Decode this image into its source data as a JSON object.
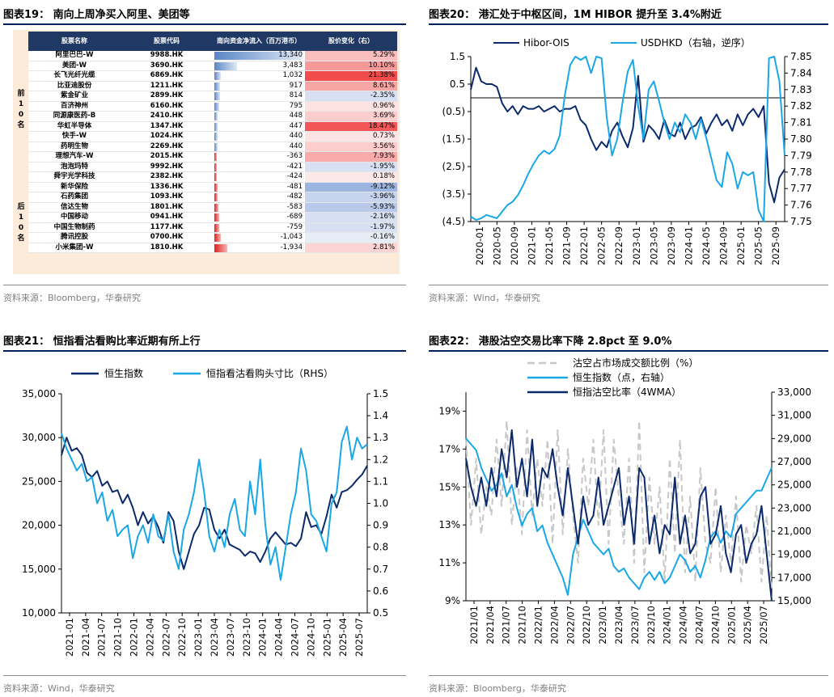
{
  "fig19": {
    "title": "图表19：  南向上周净买入阿里、美团等",
    "source": "资料来源：Bloomberg，华泰研究",
    "headers": [
      "股票名称",
      "股票代码",
      "南向资金净流入（百万港币）",
      "股价变化（右）"
    ],
    "group_top": "前10名",
    "group_bottom": "后10名",
    "colors": {
      "header": "#1f3864",
      "pos_bar": "#5b86c5",
      "neg_bar": "#e02020",
      "red": "#f24b4b",
      "blue": "#4472c4"
    },
    "chart_data": {
      "type": "table",
      "rows": [
        {
          "name": "阿里巴巴-W",
          "code": "9988.HK",
          "flow": 13340,
          "flow_label": "13,340",
          "chg": 5.29,
          "chg_label": "5.29%"
        },
        {
          "name": "美团-W",
          "code": "3690.HK",
          "flow": 3483,
          "flow_label": "3,483",
          "chg": 10.1,
          "chg_label": "10.10%"
        },
        {
          "name": "长飞光纤光缆",
          "code": "6869.HK",
          "flow": 1032,
          "flow_label": "1,032",
          "chg": 21.38,
          "chg_label": "21.38%"
        },
        {
          "name": "比亚迪股份",
          "code": "1211.HK",
          "flow": 917,
          "flow_label": "917",
          "chg": 8.61,
          "chg_label": "8.61%"
        },
        {
          "name": "紫金矿业",
          "code": "2899.HK",
          "flow": 814,
          "flow_label": "814",
          "chg": -2.35,
          "chg_label": "-2.35%"
        },
        {
          "name": "百济神州",
          "code": "6160.HK",
          "flow": 795,
          "flow_label": "795",
          "chg": 0.96,
          "chg_label": "0.96%"
        },
        {
          "name": "同源康医药-B",
          "code": "2410.HK",
          "flow": 448,
          "flow_label": "448",
          "chg": 3.69,
          "chg_label": "3.69%"
        },
        {
          "name": "华虹半导体",
          "code": "1347.HK",
          "flow": 447,
          "flow_label": "447",
          "chg": 18.47,
          "chg_label": "18.47%"
        },
        {
          "name": "快手-W",
          "code": "1024.HK",
          "flow": 440,
          "flow_label": "440",
          "chg": 0.73,
          "chg_label": "0.73%"
        },
        {
          "name": "药明生物",
          "code": "2269.HK",
          "flow": 440,
          "flow_label": "440",
          "chg": 3.56,
          "chg_label": "3.56%"
        },
        {
          "name": "理想汽车-W",
          "code": "2015.HK",
          "flow": -363,
          "flow_label": "-363",
          "chg": 7.93,
          "chg_label": "7.93%"
        },
        {
          "name": "泡泡玛特",
          "code": "9992.HK",
          "flow": -421,
          "flow_label": "-421",
          "chg": -1.95,
          "chg_label": "-1.95%"
        },
        {
          "name": "舜宇光学科技",
          "code": "2382.HK",
          "flow": -424,
          "flow_label": "-424",
          "chg": 0.18,
          "chg_label": "0.18%"
        },
        {
          "name": "新华保险",
          "code": "1336.HK",
          "flow": -481,
          "flow_label": "-481",
          "chg": -9.12,
          "chg_label": "-9.12%"
        },
        {
          "name": "石药集团",
          "code": "1093.HK",
          "flow": -482,
          "flow_label": "-482",
          "chg": -3.96,
          "chg_label": "-3.96%"
        },
        {
          "name": "信达生物",
          "code": "1801.HK",
          "flow": -583,
          "flow_label": "-583",
          "chg": -5.93,
          "chg_label": "-5.93%"
        },
        {
          "name": "中国移动",
          "code": "0941.HK",
          "flow": -689,
          "flow_label": "-689",
          "chg": -2.16,
          "chg_label": "-2.16%"
        },
        {
          "name": "中国生物制药",
          "code": "1177.HK",
          "flow": -759,
          "flow_label": "-759",
          "chg": -1.97,
          "chg_label": "-1.97%"
        },
        {
          "name": "腾讯控股",
          "code": "0700.HK",
          "flow": -1043,
          "flow_label": "-1,043",
          "chg": -0.16,
          "chg_label": "-0.16%"
        },
        {
          "name": "小米集团-W",
          "code": "1810.HK",
          "flow": -1934,
          "flow_label": "-1,934",
          "chg": 2.81,
          "chg_label": "2.81%"
        }
      ]
    }
  },
  "fig20": {
    "title": "图表20：  港汇处于中枢区间，1M HIBOR 提升至 3.4%附近",
    "source": "资料来源：Wind，华泰研究",
    "colors": {
      "s1": "#0b2a6b",
      "s2": "#1aa7e6"
    },
    "chart_data": {
      "type": "line",
      "series": [
        {
          "name": "Hibor-OIS",
          "axis": "left",
          "values": [
            0.3,
            1.1,
            0.6,
            0.5,
            0.5,
            0.4,
            -0.2,
            -0.5,
            -0.3,
            -0.6,
            -0.3,
            -0.4,
            -0.4,
            -0.3,
            -0.5,
            -0.4,
            -0.3,
            -0.5,
            -0.4,
            -0.4,
            -0.3,
            -0.8,
            -1.0,
            -1.5,
            -1.9,
            -1.6,
            -1.8,
            -1.2,
            -0.9,
            -1.4,
            -1.8,
            -1.1,
            0.8,
            -1.6,
            -1.0,
            -1.2,
            -1.5,
            -0.8,
            -1.3,
            -1.4,
            -0.9,
            -1.5,
            -1.1,
            -1.0,
            -0.7,
            -1.3,
            -0.9,
            -0.6,
            -1.0,
            -0.8,
            -1.2,
            -0.6,
            -1.0,
            -0.6,
            -0.4,
            -0.7,
            -0.3,
            -3.1,
            -3.8,
            -2.9,
            -2.6
          ]
        },
        {
          "name": "USDHKD（右轴，逆序）",
          "axis": "right",
          "inverted": true,
          "values": [
            7.753,
            7.751,
            7.752,
            7.754,
            7.753,
            7.752,
            7.756,
            7.76,
            7.762,
            7.766,
            7.772,
            7.779,
            7.785,
            7.79,
            7.793,
            7.791,
            7.794,
            7.802,
            7.827,
            7.845,
            7.85,
            7.848,
            7.85,
            7.84,
            7.85,
            7.849,
            7.813,
            7.79,
            7.8,
            7.822,
            7.841,
            7.848,
            7.82,
            7.8,
            7.83,
            7.835,
            7.823,
            7.81,
            7.8,
            7.81,
            7.804,
            7.815,
            7.81,
            7.8,
            7.812,
            7.801,
            7.788,
            7.775,
            7.771,
            7.792,
            7.785,
            7.77,
            7.78,
            7.778,
            7.78,
            7.757,
            7.75,
            7.849,
            7.85,
            7.835,
            7.79
          ]
        }
      ],
      "x_ticks": [
        "2020-01",
        "2020-05",
        "2020-09",
        "2021-01",
        "2021-05",
        "2021-09",
        "2022-01",
        "2022-05",
        "2022-09",
        "2023-01",
        "2023-05",
        "2023-09",
        "2024-01",
        "2024-05",
        "2024-09",
        "2025-01",
        "2025-05",
        "2025-09"
      ],
      "y_left": {
        "min": -4.5,
        "max": 1.5,
        "ticks": [
          1.5,
          0.5,
          -0.5,
          -1.5,
          -2.5,
          -3.5,
          -4.5
        ],
        "labels": [
          "1.5",
          "0.5",
          "(0.5)",
          "(1.5)",
          "(2.5)",
          "(3.5)",
          "(4.5)"
        ]
      },
      "y_right": {
        "min": 7.75,
        "max": 7.85,
        "ticks": [
          7.75,
          7.76,
          7.77,
          7.78,
          7.79,
          7.8,
          7.81,
          7.82,
          7.83,
          7.84,
          7.85
        ],
        "labels": [
          "7.75",
          "7.76",
          "7.77",
          "7.78",
          "7.79",
          "7.80",
          "7.81",
          "7.82",
          "7.83",
          "7.84",
          "7.85"
        ]
      }
    }
  },
  "fig21": {
    "title": "图表21：  恒指看沽看购比率近期有所上行",
    "source": "资料来源：Wind，华泰研究",
    "colors": {
      "s1": "#0b2a6b",
      "s2": "#1aa7e6"
    },
    "chart_data": {
      "type": "line",
      "series": [
        {
          "name": "恒生指数",
          "axis": "left",
          "values": [
            28000,
            30000,
            28500,
            28800,
            28000,
            26000,
            25500,
            26200,
            24500,
            25000,
            23800,
            24000,
            22500,
            23500,
            22000,
            20000,
            21500,
            20200,
            21000,
            19800,
            18000,
            21500,
            20500,
            17000,
            15000,
            17000,
            19000,
            20000,
            22000,
            21800,
            19500,
            18500,
            19500,
            17800,
            17500,
            17200,
            16500,
            17000,
            16800,
            15800,
            17000,
            18500,
            19200,
            18500,
            17800,
            18000,
            17600,
            18500,
            21500,
            19800,
            20000,
            19000,
            21000,
            23500,
            22000,
            23800,
            24000,
            24500,
            25200,
            25800,
            26800
          ]
        },
        {
          "name": "恒指看沽看购头寸比（RHS）",
          "axis": "right",
          "values": [
            1.32,
            1.25,
            1.2,
            1.15,
            1.18,
            1.1,
            1.12,
            1.0,
            1.05,
            0.92,
            0.97,
            0.85,
            0.88,
            0.9,
            0.75,
            0.85,
            0.9,
            0.82,
            0.95,
            0.85,
            0.83,
            0.95,
            0.78,
            0.7,
            0.88,
            0.95,
            1.05,
            1.2,
            1.05,
            0.85,
            0.78,
            0.88,
            0.8,
            0.95,
            1.02,
            0.88,
            0.85,
            1.1,
            0.95,
            1.2,
            0.9,
            0.72,
            0.8,
            0.65,
            0.8,
            0.95,
            1.05,
            1.25,
            1.15,
            0.95,
            0.92,
            0.85,
            0.78,
            1.0,
            1.05,
            1.28,
            1.35,
            1.2,
            1.3,
            1.25,
            1.27
          ]
        }
      ],
      "x_ticks": [
        "2021-01",
        "2021-04",
        "2021-07",
        "2021-10",
        "2022-01",
        "2022-04",
        "2022-07",
        "2022-10",
        "2023-01",
        "2023-04",
        "2023-07",
        "2023-10",
        "2024-01",
        "2024-04",
        "2024-07",
        "2024-10",
        "2025-01",
        "2025-04",
        "2025-07"
      ],
      "y_left": {
        "min": 10000,
        "max": 35000,
        "ticks": [
          10000,
          15000,
          20000,
          25000,
          30000,
          35000
        ],
        "labels": [
          "10,000",
          "15,000",
          "20,000",
          "25,000",
          "30,000",
          "35,000"
        ]
      },
      "y_right": {
        "min": 0.5,
        "max": 1.5,
        "ticks": [
          0.5,
          0.6,
          0.7,
          0.8,
          0.9,
          1.0,
          1.1,
          1.2,
          1.3,
          1.4,
          1.5
        ],
        "labels": [
          "0.5",
          "0.6",
          "0.7",
          "0.8",
          "0.9",
          "1.0",
          "1.1",
          "1.2",
          "1.3",
          "1.4",
          "1.5"
        ]
      }
    }
  },
  "fig22": {
    "title": "图表22：  港股沽空交易比率下降 2.8pct 至 9.0%",
    "source": "资料来源：Bloomberg，华泰研究",
    "colors": {
      "s1": "#c8c8c8",
      "s2": "#1aa7e6",
      "s3": "#0b2a6b"
    },
    "chart_data": {
      "type": "line",
      "series": [
        {
          "name": "沽空占市场成交额比例（%）",
          "axis": "left",
          "dashed": true,
          "values": [
            17.5,
            13.0,
            16.5,
            12.5,
            15.0,
            13.5,
            17.5,
            14.0,
            18.5,
            13.0,
            16.0,
            12.5,
            18.0,
            13.5,
            16.5,
            14.0,
            17.5,
            12.0,
            18.0,
            12.5,
            17.0,
            13.5,
            11.0,
            16.5,
            14.0,
            17.5,
            13.0,
            18.0,
            12.0,
            17.5,
            14.5,
            12.0,
            16.5,
            11.0,
            18.5,
            10.5,
            15.5,
            12.0,
            15.0,
            10.0,
            16.5,
            11.5,
            17.5,
            10.5,
            14.5,
            10.0,
            16.0,
            12.0,
            11.0,
            15.0,
            10.5,
            13.5,
            11.0,
            14.5,
            10.0,
            13.0,
            11.5,
            14.0,
            10.0,
            13.5,
            9.5
          ]
        },
        {
          "name": "恒生指数（点，右轴）",
          "axis": "right",
          "values": [
            29000,
            28500,
            28000,
            26500,
            25500,
            24500,
            25000,
            26000,
            24000,
            25000,
            23000,
            21500,
            22500,
            23000,
            21000,
            21500,
            20000,
            19000,
            18000,
            17000,
            15500,
            19000,
            20500,
            22000,
            21000,
            20000,
            19500,
            19000,
            19500,
            18000,
            17500,
            17800,
            17000,
            16500,
            16000,
            17000,
            17500,
            16800,
            17500,
            16500,
            17000,
            18000,
            19000,
            18500,
            17500,
            18000,
            17000,
            18500,
            20500,
            21000,
            20000,
            21000,
            20500,
            22500,
            23000,
            23500,
            24000,
            24500,
            24500,
            25500,
            26500
          ]
        },
        {
          "name": "恒指沽空比率（4WMA）",
          "axis": "left",
          "values": [
            16.5,
            15.0,
            14.0,
            15.5,
            14.0,
            16.0,
            14.5,
            17.0,
            15.5,
            18.0,
            15.0,
            16.5,
            14.5,
            17.5,
            14.0,
            16.0,
            15.5,
            17.0,
            15.0,
            13.5,
            16.0,
            14.0,
            12.0,
            14.5,
            13.0,
            13.5,
            15.5,
            13.0,
            14.0,
            15.0,
            16.0,
            13.0,
            14.5,
            12.0,
            16.0,
            15.5,
            12.0,
            13.5,
            11.5,
            13.0,
            12.5,
            15.5,
            12.0,
            13.5,
            11.5,
            12.0,
            14.5,
            15.0,
            12.0,
            12.5,
            14.0,
            11.5,
            10.5,
            12.5,
            13.0,
            11.0,
            12.0,
            12.5,
            14.0,
            11.5,
            9.0
          ]
        }
      ],
      "x_ticks": [
        "2021/01",
        "2021/04",
        "2021/07",
        "2021/10",
        "2022/01",
        "2022/04",
        "2022/07",
        "2022/10",
        "2023/01",
        "2023/04",
        "2023/07",
        "2023/10",
        "2024/01",
        "2024/04",
        "2024/07",
        "2024/10",
        "2025/01",
        "2025/04",
        "2025/07"
      ],
      "y_left": {
        "min": 9,
        "max": 20,
        "ticks": [
          9,
          11,
          13,
          15,
          17,
          19
        ],
        "labels": [
          "9%",
          "11%",
          "13%",
          "15%",
          "17%",
          "19%"
        ]
      },
      "y_right": {
        "min": 15000,
        "max": 33000,
        "ticks": [
          15000,
          17000,
          19000,
          21000,
          23000,
          25000,
          27000,
          29000,
          31000,
          33000
        ],
        "labels": [
          "15,000",
          "17,000",
          "19,000",
          "21,000",
          "23,000",
          "25,000",
          "27,000",
          "29,000",
          "31,000",
          "33,000"
        ]
      }
    }
  }
}
